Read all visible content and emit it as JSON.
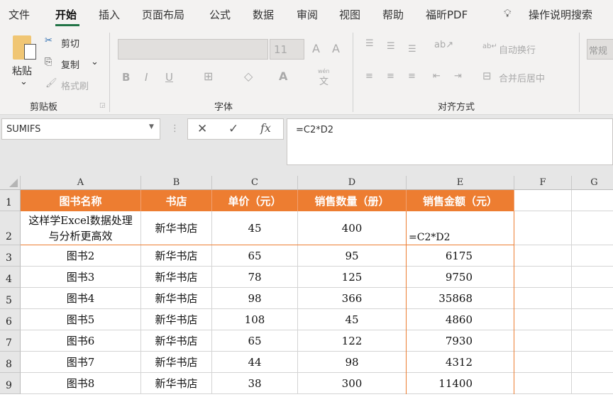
{
  "tabs": [
    "文件",
    "开始",
    "插入",
    "页面布局",
    "公式",
    "数据",
    "审阅",
    "视图",
    "帮助",
    "福昕PDF"
  ],
  "tell_me": "操作说明搜索",
  "clipboard": {
    "paste": "粘贴",
    "cut": "剪切",
    "copy": "复制",
    "format_painter": "格式刷",
    "group": "剪贴板"
  },
  "font": {
    "name": "",
    "size": "11",
    "bold": "B",
    "italic": "I",
    "underline": "U",
    "font_color": "A",
    "phonetic_top": "wén",
    "phonetic": "文",
    "grow": "A",
    "shrink": "A",
    "group": "字体"
  },
  "alignment": {
    "wrap": "自动换行",
    "merge": "合并后居中",
    "group": "对齐方式"
  },
  "number": {
    "format": "常规"
  },
  "formula_bar": {
    "name_box": "SUMIFS",
    "cancel": "✕",
    "enter": "✓",
    "fx": "fx",
    "formula": "=C2*D2"
  },
  "columns": [
    "A",
    "B",
    "C",
    "D",
    "E",
    "F",
    "G"
  ],
  "rows": [
    "1",
    "2",
    "3",
    "4",
    "5",
    "6",
    "7",
    "8",
    "9"
  ],
  "headers": [
    "图书名称",
    "书店",
    "单价（元）",
    "销售数量（册）",
    "销售金额（元）"
  ],
  "data": [
    [
      "这样学Excel数据处理与分析更高效",
      "新华书店",
      "45",
      "400",
      "=C2*D2"
    ],
    [
      "图书2",
      "新华书店",
      "65",
      "95",
      "6175"
    ],
    [
      "图书3",
      "新华书店",
      "78",
      "125",
      "9750"
    ],
    [
      "图书4",
      "新华书店",
      "98",
      "366",
      "35868"
    ],
    [
      "图书5",
      "新华书店",
      "108",
      "45",
      "4860"
    ],
    [
      "图书6",
      "新华书店",
      "65",
      "122",
      "7930"
    ],
    [
      "图书7",
      "新华书店",
      "44",
      "98",
      "4312"
    ],
    [
      "图书8",
      "新华书店",
      "38",
      "300",
      "11400"
    ]
  ],
  "colors": {
    "header_fill": "#ed7d31",
    "accent": "#217346"
  }
}
